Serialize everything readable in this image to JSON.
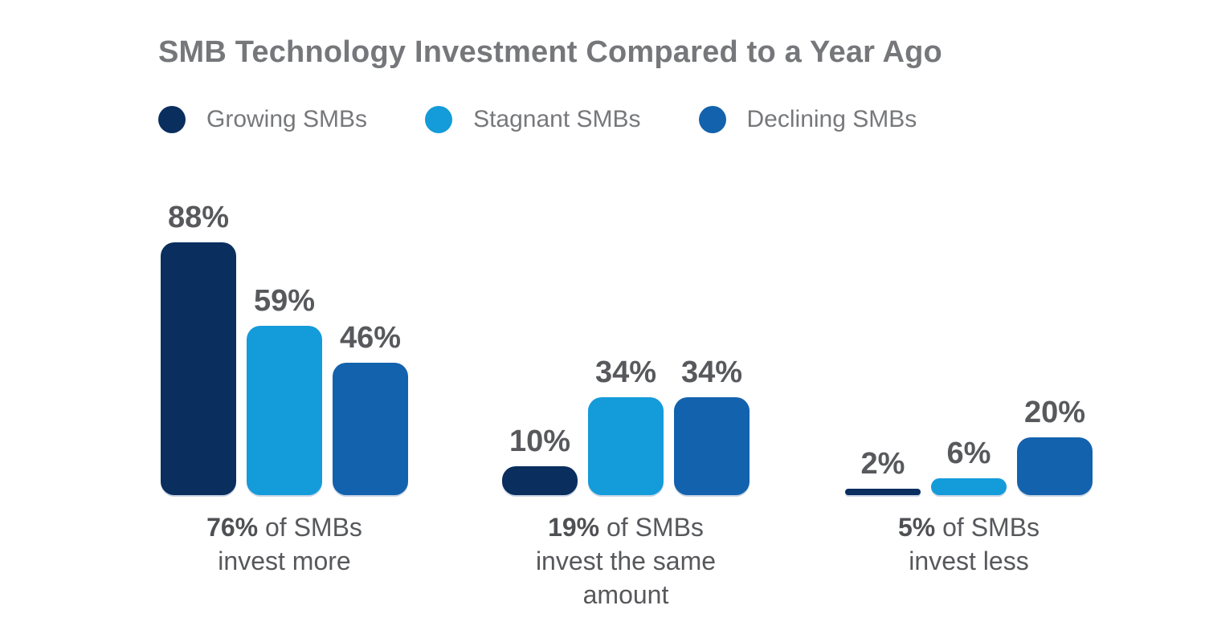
{
  "colors": {
    "background": "#FFFFFF",
    "title_text": "#76777A",
    "legend_text": "#77787B",
    "value_label_text": "#58595C",
    "caption_text": "#57585B",
    "series_growing": "#0A2E5E",
    "series_stagnant": "#149BD9",
    "series_declining": "#1362AD"
  },
  "chart_data": {
    "type": "bar",
    "title": "SMB Technology Investment Compared to a Year Ago",
    "legend_position": "top-left",
    "grid": false,
    "ylim": [
      0,
      100
    ],
    "value_suffix": "%",
    "categories": [
      "invest more",
      "invest the same amount",
      "invest less"
    ],
    "series": [
      {
        "name": "Growing SMBs",
        "color": "#0A2E5E",
        "values": [
          88,
          10,
          2
        ]
      },
      {
        "name": "Stagnant SMBs",
        "color": "#149BD9",
        "values": [
          59,
          34,
          6
        ]
      },
      {
        "name": "Declining SMBs",
        "color": "#1362AD",
        "values": [
          46,
          34,
          20
        ]
      }
    ],
    "group_captions": [
      {
        "highlight": "76%",
        "lines": [
          "76% of SMBs",
          "invest more"
        ]
      },
      {
        "highlight": "19%",
        "lines": [
          "19% of SMBs",
          "invest the same",
          "amount"
        ]
      },
      {
        "highlight": "5%",
        "lines": [
          "5% of SMBs",
          "invest less"
        ]
      }
    ]
  }
}
